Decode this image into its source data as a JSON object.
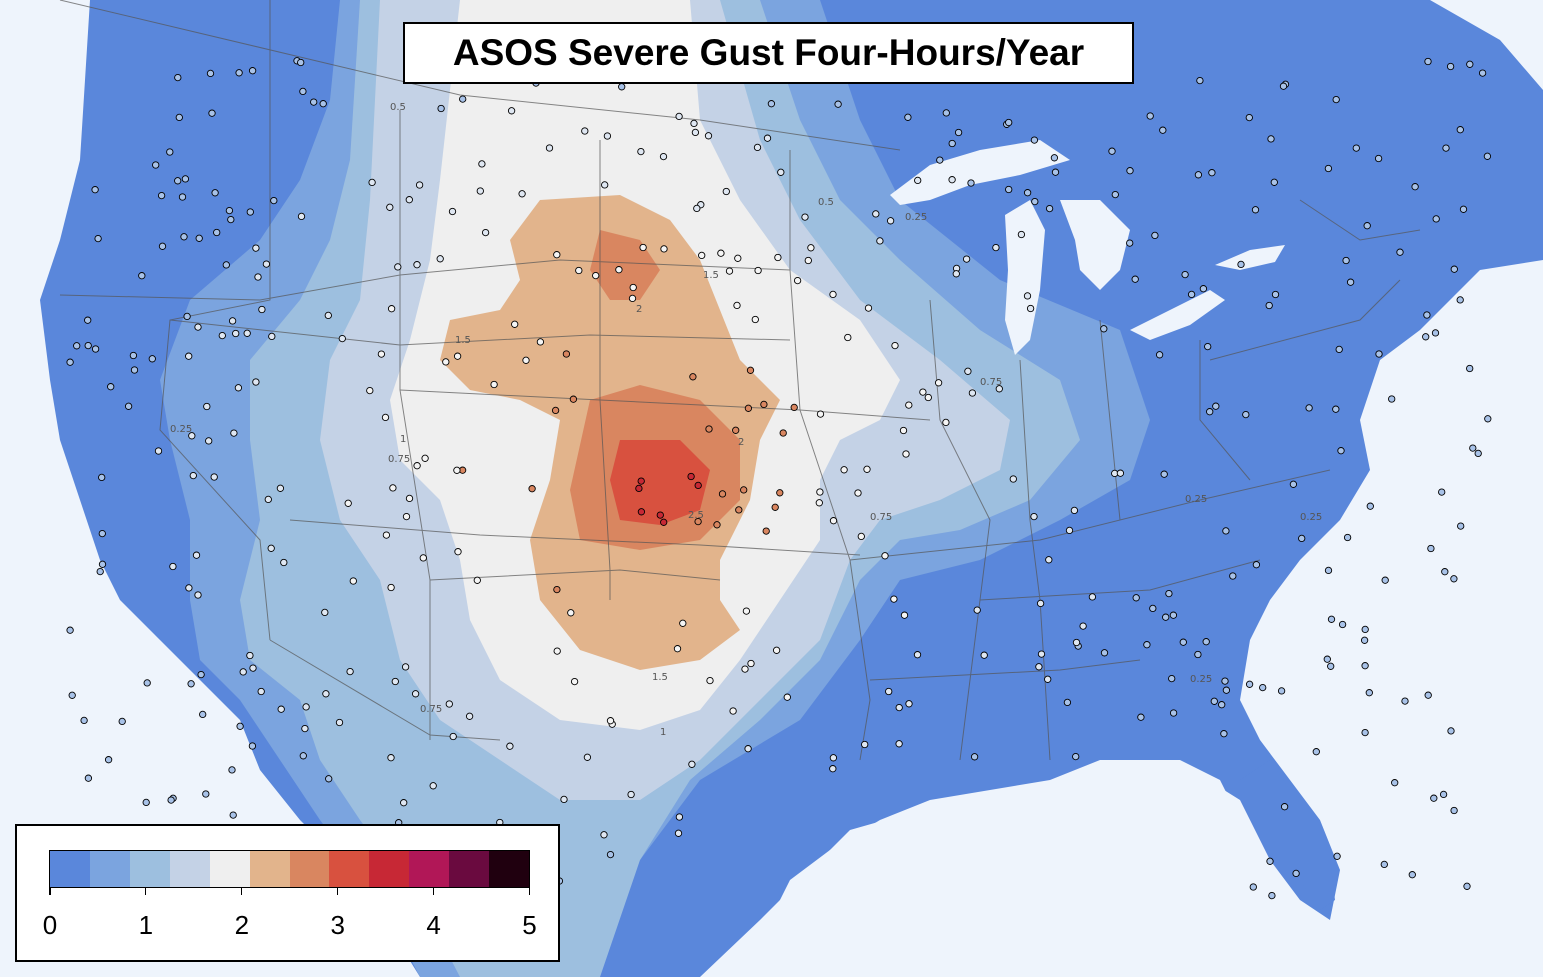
{
  "title": "ASOS Severe Gust Four-Hours/Year",
  "legend": {
    "colors": [
      "#5a87db",
      "#7ba4df",
      "#9dbfdf",
      "#c4d2e6",
      "#efefef",
      "#e2b48c",
      "#d98660",
      "#d8513f",
      "#c72835",
      "#b11757",
      "#6a0a3f",
      "#20000f"
    ],
    "tick_labels": [
      "0",
      "1",
      "2",
      "3",
      "4",
      "5"
    ],
    "range": [
      0,
      5
    ]
  },
  "contour_labels": [
    "0.25",
    "0.5",
    "0.75",
    "1",
    "1.5",
    "2",
    "2.5"
  ],
  "colors": {
    "ocean": "#eef4fc",
    "lake": "#eef4fc",
    "station_stroke": "#000000",
    "border": "#555555"
  },
  "peak_region": {
    "description_values": {
      "max_value": 3
    }
  }
}
